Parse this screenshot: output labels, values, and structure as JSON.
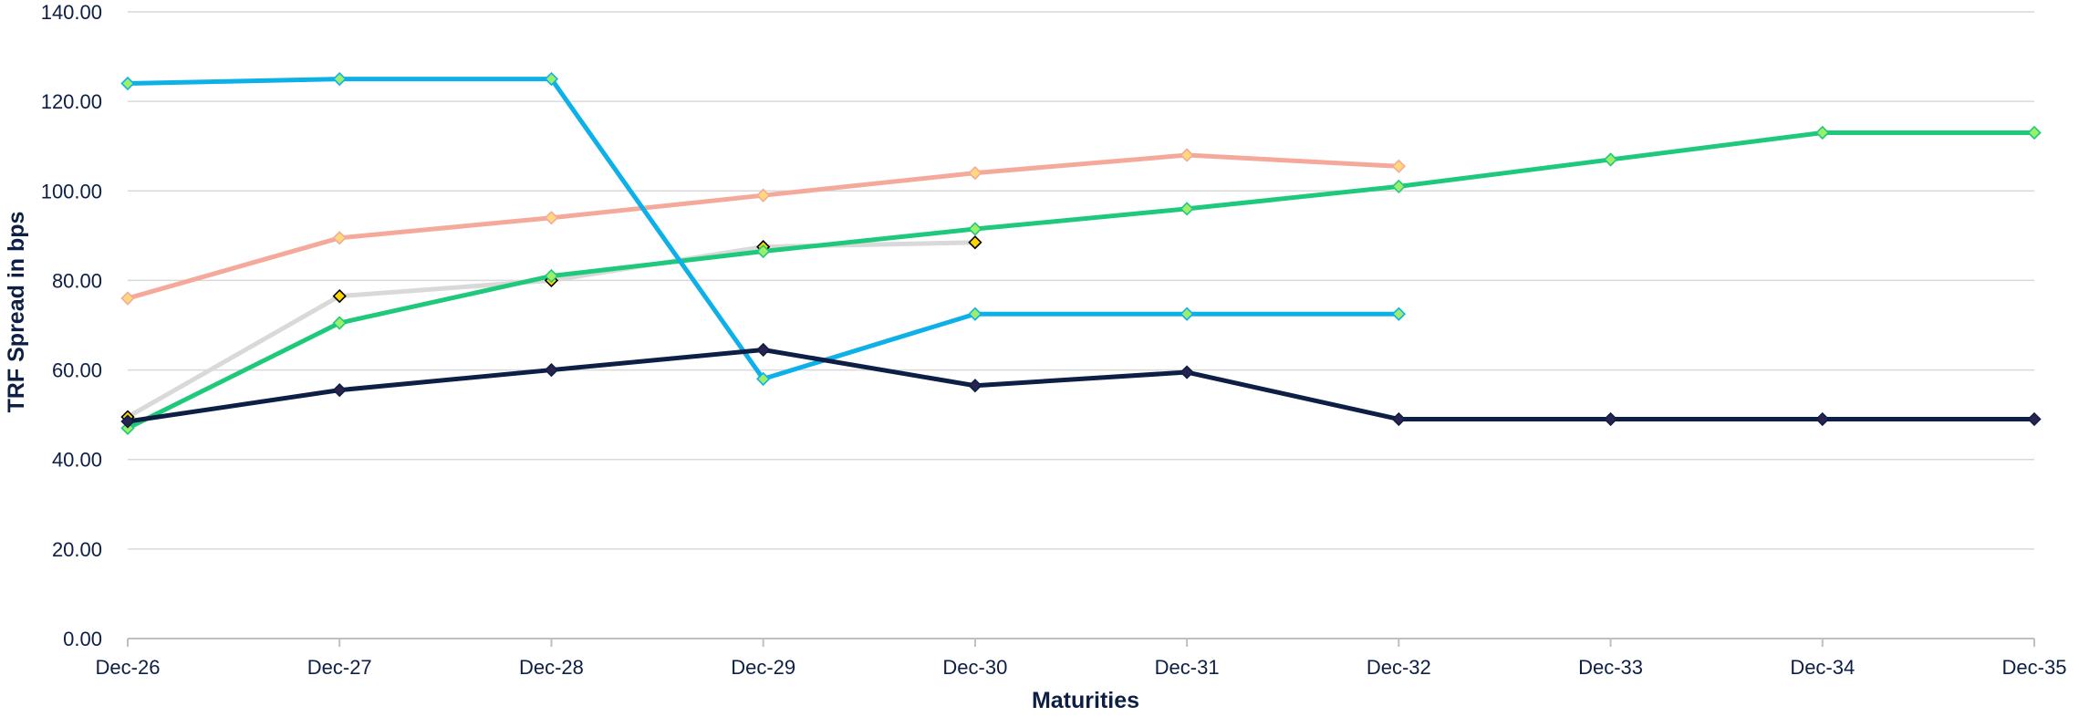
{
  "chart_data": {
    "type": "line",
    "xlabel": "Maturities",
    "ylabel": "TRF Spread  in bps",
    "categories": [
      "Dec-26",
      "Dec-27",
      "Dec-28",
      "Dec-29",
      "Dec-30",
      "Dec-31",
      "Dec-32",
      "Dec-33",
      "Dec-34",
      "Dec-35"
    ],
    "ylim": [
      0,
      140
    ],
    "yticks": [
      "0.00",
      "20.00",
      "40.00",
      "60.00",
      "80.00",
      "100.00",
      "120.00",
      "140.00"
    ],
    "grid": true,
    "legend": "none",
    "series": [
      {
        "color": "#f4a99b",
        "marker_color": "#ffd97a",
        "values": [
          76,
          89.5,
          94,
          99,
          104,
          108,
          105.5,
          null,
          null,
          null
        ]
      },
      {
        "color": "#d9d9d9",
        "marker_color": "#ffd700",
        "marker_edge": "#000000",
        "values": [
          49.5,
          76.5,
          80,
          87.5,
          88.5,
          null,
          null,
          null,
          null,
          null
        ]
      },
      {
        "color": "#1fc97b",
        "marker_color": "#9bef6a",
        "values": [
          47,
          70.5,
          81,
          86.5,
          91.5,
          96,
          101,
          107,
          113,
          113
        ]
      },
      {
        "color": "#0eb0e8",
        "marker_color": "#9bef6a",
        "values": [
          124,
          125,
          125,
          58,
          72.5,
          72.5,
          72.5,
          null,
          null,
          null
        ]
      },
      {
        "color": "#0d1f45",
        "marker_color": "#2a2350",
        "values": [
          48.5,
          55.5,
          60,
          64.5,
          56.5,
          59.5,
          49,
          49,
          49,
          49
        ]
      }
    ]
  }
}
